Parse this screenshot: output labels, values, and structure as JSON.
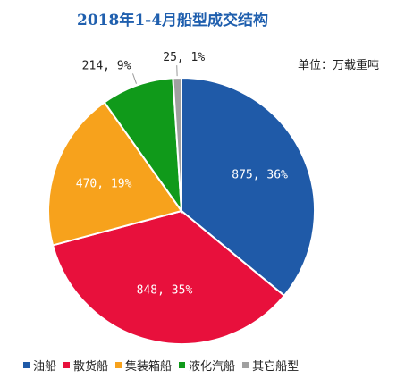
{
  "title": "2018年1-4月船型成交结构",
  "unit_label": "单位：万载重吨",
  "chart_data": {
    "type": "pie",
    "title": "2018年1-4月船型成交结构",
    "unit": "万载重吨",
    "legend_position": "bottom",
    "categories": [
      "油船",
      "散货船",
      "集装箱船",
      "液化汽船",
      "其它船型"
    ],
    "values": [
      875,
      848,
      470,
      214,
      25
    ],
    "percent": [
      36,
      35,
      19,
      9,
      1
    ],
    "data_labels": [
      "875, 36%",
      "848, 35%",
      "470, 19%",
      "214, 9%",
      "25, 1%"
    ],
    "colors": [
      "#1f5aa8",
      "#e8103c",
      "#f7a21c",
      "#109a1a",
      "#a0a0a0"
    ]
  }
}
